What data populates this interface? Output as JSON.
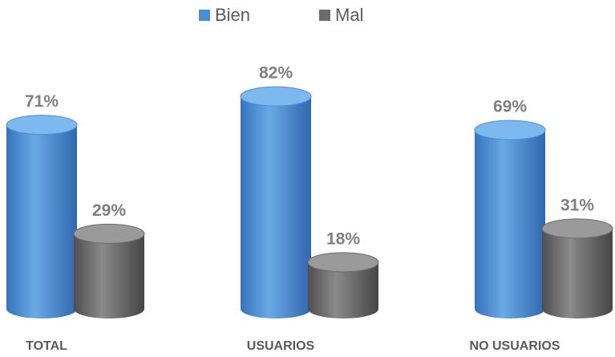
{
  "chart_data": {
    "type": "bar",
    "categories": [
      "TOTAL",
      "USUARIOS",
      "NO USUARIOS"
    ],
    "series": [
      {
        "name": "Bien",
        "color": "#4a8fd6",
        "values": [
          71,
          82,
          69
        ],
        "value_labels": [
          "71%",
          "82%",
          "69%"
        ]
      },
      {
        "name": "Mal",
        "color": "#6b6b6b",
        "values": [
          29,
          18,
          31
        ],
        "value_labels": [
          "29%",
          "18%",
          "31%"
        ]
      }
    ],
    "legend": "top"
  }
}
